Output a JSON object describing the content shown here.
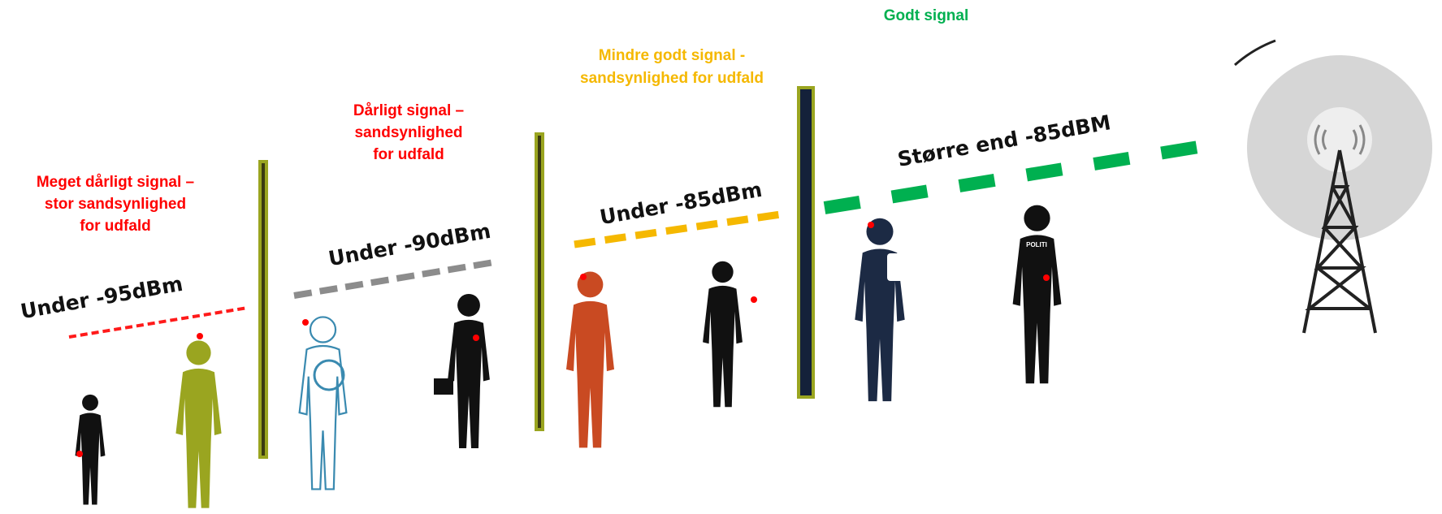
{
  "zones": [
    {
      "description": [
        "Meget dårligt signal –",
        "stor sandsynlighed",
        "for udfald"
      ],
      "level": "Under -95dBm"
    },
    {
      "description": [
        "Dårligt signal –",
        "sandsynlighed",
        "for udfald"
      ],
      "level": "Under -90dBm"
    },
    {
      "description": [
        "Mindre godt signal -",
        "sandsynlighed for udfald"
      ],
      "level": "Under -85dBm"
    },
    {
      "description": [
        "Godt signal"
      ],
      "level": "Større end -85dBM"
    }
  ],
  "vest_text": "POLITI"
}
